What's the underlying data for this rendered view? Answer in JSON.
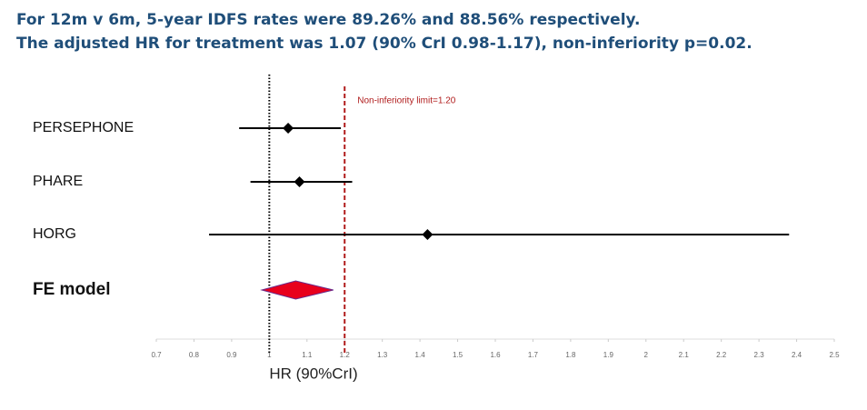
{
  "chart_data": {
    "type": "forest",
    "title": "For 12m v 6m, 5-year IDFS rates were 89.26% and 88.56% respectively.",
    "subtitle": "The adjusted HR for treatment was 1.07 (90% CrI 0.98-1.17), non-inferiority p=0.02.",
    "xlabel": "HR (90%CrI)",
    "categories": [
      "PERSEPHONE",
      "PHARE",
      "HORG"
    ],
    "values": [
      1.05,
      1.08,
      1.42
    ],
    "lower": [
      0.92,
      0.95,
      0.84
    ],
    "upper": [
      1.19,
      1.22,
      2.38
    ],
    "color": "#000000",
    "summary": {
      "name": "FE model",
      "value": 1.07,
      "lower": 0.98,
      "upper": 1.17,
      "color": "#e8001c"
    },
    "reference_line": 1,
    "limit_line": {
      "value": 1.2,
      "label": "Non-inferiority limit=1.20",
      "color": "#b01c1c"
    },
    "xlim": [
      0.7,
      2.5
    ],
    "xticks": [
      0.7,
      0.8,
      0.9,
      1,
      1.1,
      1.2,
      1.3,
      1.4,
      1.5,
      1.6,
      1.7,
      1.8,
      1.9,
      2,
      2.1,
      2.2,
      2.3,
      2.4,
      2.5
    ]
  }
}
